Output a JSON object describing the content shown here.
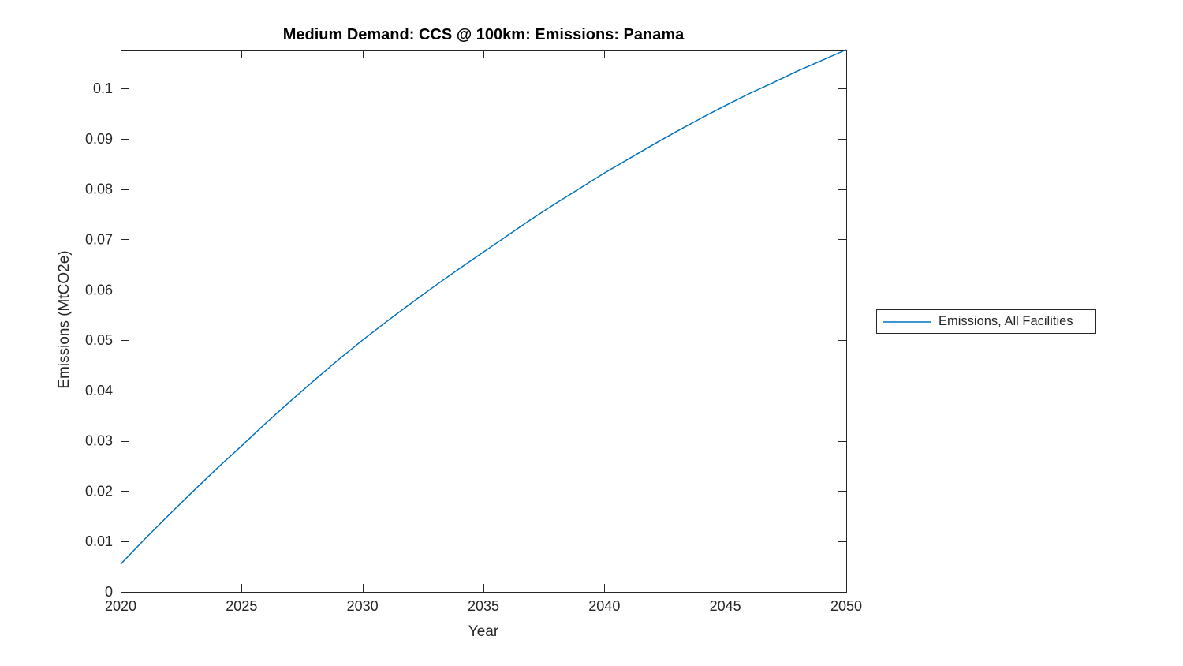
{
  "figure": {
    "title": "Medium Demand: CCS @ 100km: Emissions: Panama",
    "xlabel": "Year",
    "ylabel": "Emissions (MtCO2e)",
    "legend": {
      "entries": [
        {
          "label": "Emissions, All Facilities",
          "color": "#0072BD"
        }
      ],
      "position": "outside-right"
    }
  },
  "colors": {
    "background": "#FFFFFF",
    "axis": "#262626",
    "title": "#000000",
    "line": "#0072BD"
  },
  "chart_data": {
    "type": "line",
    "title": "Medium Demand: CCS @ 100km: Emissions: Panama",
    "xlabel": "Year",
    "ylabel": "Emissions (MtCO2e)",
    "xlim": [
      2020,
      2050
    ],
    "ylim": [
      0,
      0.1077
    ],
    "xticks": [
      2020,
      2025,
      2030,
      2035,
      2040,
      2045,
      2050
    ],
    "yticks": [
      0,
      0.01,
      0.02,
      0.03,
      0.04,
      0.05,
      0.06,
      0.07,
      0.08,
      0.09,
      0.1
    ],
    "ytick_labels": [
      "0",
      "0.01",
      "0.02",
      "0.03",
      "0.04",
      "0.05",
      "0.06",
      "0.07",
      "0.08",
      "0.09",
      "0.1"
    ],
    "grid": false,
    "box": true,
    "tick_dir": "in",
    "legend_position": "outside-right",
    "series": [
      {
        "name": "Emissions, All Facilities",
        "color": "#0072BD",
        "x": [
          2020,
          2021,
          2022,
          2023,
          2024,
          2025,
          2026,
          2027,
          2028,
          2029,
          2030,
          2031,
          2032,
          2033,
          2034,
          2035,
          2036,
          2037,
          2038,
          2039,
          2040,
          2041,
          2042,
          2043,
          2044,
          2045,
          2046,
          2047,
          2048,
          2049,
          2050
        ],
        "values": [
          0.0055,
          0.0105,
          0.0153,
          0.02,
          0.0246,
          0.029,
          0.0335,
          0.0378,
          0.042,
          0.0461,
          0.05,
          0.0537,
          0.0573,
          0.0608,
          0.0642,
          0.0675,
          0.0708,
          0.0741,
          0.0772,
          0.0802,
          0.0832,
          0.086,
          0.0888,
          0.0915,
          0.0941,
          0.0966,
          0.099,
          0.1012,
          0.1035,
          0.1056,
          0.1077
        ]
      }
    ]
  }
}
